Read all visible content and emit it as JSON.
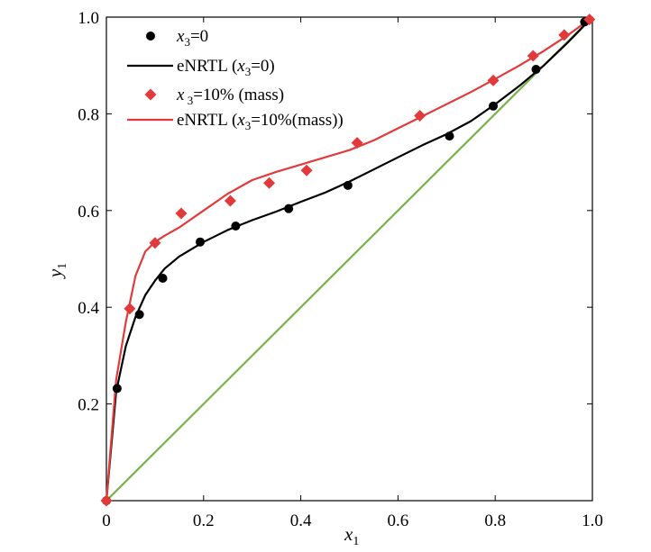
{
  "colors": {
    "black": "#000000",
    "red": "#e23a3a",
    "green": "#76b24a"
  },
  "chart_data": {
    "type": "scatter",
    "xlabel": "x",
    "xlabel_sub": "1",
    "ylabel": "y",
    "ylabel_sub": "1",
    "xlim": [
      0,
      1
    ],
    "ylim": [
      0,
      1
    ],
    "x_ticks": [
      "0",
      "0.2",
      "0.4",
      "0.6",
      "0.8",
      "1.0"
    ],
    "y_ticks": [
      "0.2",
      "0.4",
      "0.6",
      "0.8",
      "1.0"
    ],
    "grid": false,
    "legend_position": "top-left",
    "legend": [
      {
        "marker": "circle",
        "color": "#000000",
        "parts": [
          [
            "x",
            "it"
          ],
          [
            "3",
            "sub"
          ],
          [
            "=0",
            ""
          ]
        ]
      },
      {
        "marker": "line",
        "color": "#000000",
        "parts": [
          [
            "eNRTL  (",
            ""
          ],
          [
            "x",
            "it"
          ],
          [
            "3",
            "sub"
          ],
          [
            "=0)",
            ""
          ]
        ]
      },
      {
        "marker": "diamond",
        "color": "#e23a3a",
        "parts": [
          [
            "x",
            "it"
          ],
          [
            " 3",
            "sub"
          ],
          [
            "=10% (mass)",
            ""
          ]
        ]
      },
      {
        "marker": "line",
        "color": "#e23a3a",
        "parts": [
          [
            "eNRTL (",
            ""
          ],
          [
            "x",
            "it"
          ],
          [
            "3",
            "sub"
          ],
          [
            "=10%(mass))",
            ""
          ]
        ]
      }
    ],
    "series": [
      {
        "name": "x3=0",
        "kind": "scatter",
        "marker": "circle",
        "color": "#000000",
        "x": [
          0.0,
          0.022,
          0.068,
          0.116,
          0.193,
          0.266,
          0.375,
          0.497,
          0.706,
          0.796,
          0.884,
          0.984
        ],
        "y": [
          0.0,
          0.232,
          0.385,
          0.46,
          0.535,
          0.568,
          0.604,
          0.652,
          0.754,
          0.816,
          0.892,
          0.99
        ]
      },
      {
        "name": "eNRTL (x3=0)",
        "kind": "line",
        "color": "#000000",
        "x": [
          0.0,
          0.02,
          0.04,
          0.06,
          0.08,
          0.1,
          0.12,
          0.15,
          0.2,
          0.25,
          0.3,
          0.35,
          0.4,
          0.45,
          0.5,
          0.55,
          0.6,
          0.65,
          0.7,
          0.75,
          0.8,
          0.85,
          0.9,
          0.95,
          1.0
        ],
        "y": [
          0.0,
          0.225,
          0.32,
          0.38,
          0.425,
          0.455,
          0.48,
          0.505,
          0.535,
          0.56,
          0.58,
          0.598,
          0.618,
          0.637,
          0.66,
          0.685,
          0.71,
          0.735,
          0.758,
          0.785,
          0.82,
          0.858,
          0.9,
          0.948,
          1.0
        ]
      },
      {
        "name": "x3=10% (mass)",
        "kind": "scatter",
        "marker": "diamond",
        "color": "#e23a3a",
        "x": [
          0.0,
          0.048,
          0.1,
          0.154,
          0.255,
          0.335,
          0.412,
          0.516,
          0.645,
          0.796,
          0.878,
          0.942,
          0.994
        ],
        "y": [
          0.0,
          0.397,
          0.533,
          0.594,
          0.62,
          0.657,
          0.683,
          0.74,
          0.796,
          0.869,
          0.92,
          0.963,
          0.995
        ]
      },
      {
        "name": "eNRTL (x3=10%(mass))",
        "kind": "line",
        "color": "#e23a3a",
        "x": [
          0.0,
          0.02,
          0.04,
          0.06,
          0.08,
          0.1,
          0.12,
          0.15,
          0.2,
          0.25,
          0.3,
          0.35,
          0.4,
          0.45,
          0.5,
          0.55,
          0.6,
          0.65,
          0.7,
          0.75,
          0.8,
          0.85,
          0.9,
          0.95,
          1.0
        ],
        "y": [
          0.0,
          0.25,
          0.37,
          0.465,
          0.515,
          0.535,
          0.548,
          0.565,
          0.6,
          0.635,
          0.663,
          0.68,
          0.695,
          0.71,
          0.725,
          0.745,
          0.77,
          0.795,
          0.82,
          0.845,
          0.872,
          0.9,
          0.93,
          0.963,
          1.0
        ]
      },
      {
        "name": "",
        "kind": "line",
        "color": "#76b24a",
        "x": [
          0.0,
          1.0
        ],
        "y": [
          0.0,
          1.0
        ]
      }
    ]
  }
}
